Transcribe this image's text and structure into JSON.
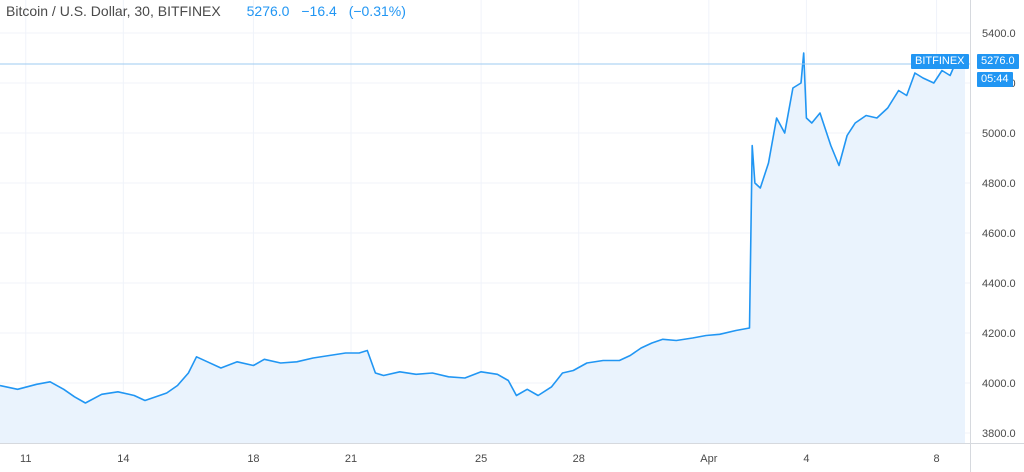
{
  "legend": {
    "symbol": "Bitcoin / U.S. Dollar, 30, BITFINEX",
    "last": "5276.0",
    "change": "−16.4",
    "change_pct": "(−0.31%)"
  },
  "price_tags": {
    "exchange": "BITFINEX",
    "price": "5276.0",
    "countdown": "05:44"
  },
  "colors": {
    "line": "#2196f3",
    "fill": "#eaf3fd",
    "grid": "#f0f3fa",
    "axis_text": "#4a4a4a",
    "tag": "#2196f3"
  },
  "chart_data": {
    "type": "area",
    "title": "Bitcoin / U.S. Dollar, 30, BITFINEX",
    "xlabel": "",
    "ylabel": "",
    "ylim": [
      3760,
      5500
    ],
    "xlim": [
      "2019-03-10 05:00",
      "2019-04-08 21:00"
    ],
    "grid": true,
    "y_ticks": [
      "3800.0",
      "4000.0",
      "4200.0",
      "4400.0",
      "4600.0",
      "4800.0",
      "5000.0",
      "5200.0",
      "5400.0"
    ],
    "x_ticks": [
      {
        "label": "11",
        "date": "2019-03-11"
      },
      {
        "label": "14",
        "date": "2019-03-14"
      },
      {
        "label": "18",
        "date": "2019-03-18"
      },
      {
        "label": "21",
        "date": "2019-03-21"
      },
      {
        "label": "25",
        "date": "2019-03-25"
      },
      {
        "label": "28",
        "date": "2019-03-28"
      },
      {
        "label": "Apr",
        "date": "2019-04-01"
      },
      {
        "label": "4",
        "date": "2019-04-04"
      },
      {
        "label": "8",
        "date": "2019-04-08"
      }
    ],
    "last_value": 5276.0,
    "series": [
      {
        "name": "",
        "x": [
          "2019-03-10 05:00",
          "2019-03-10 18:00",
          "2019-03-11 08:00",
          "2019-03-11 18:00",
          "2019-03-12 04:00",
          "2019-03-12 12:00",
          "2019-03-12 20:00",
          "2019-03-13 08:00",
          "2019-03-13 20:00",
          "2019-03-14 08:00",
          "2019-03-14 16:00",
          "2019-03-15 00:00",
          "2019-03-15 08:00",
          "2019-03-15 16:00",
          "2019-03-16 00:00",
          "2019-03-16 06:00",
          "2019-03-16 14:00",
          "2019-03-17 00:00",
          "2019-03-17 12:00",
          "2019-03-18 00:00",
          "2019-03-18 08:00",
          "2019-03-18 20:00",
          "2019-03-19 08:00",
          "2019-03-19 20:00",
          "2019-03-20 08:00",
          "2019-03-20 20:00",
          "2019-03-21 06:00",
          "2019-03-21 12:00",
          "2019-03-21 18:00",
          "2019-03-22 00:00",
          "2019-03-22 12:00",
          "2019-03-23 00:00",
          "2019-03-23 12:00",
          "2019-03-24 00:00",
          "2019-03-24 12:00",
          "2019-03-25 00:00",
          "2019-03-25 12:00",
          "2019-03-25 20:00",
          "2019-03-26 02:00",
          "2019-03-26 10:00",
          "2019-03-26 18:00",
          "2019-03-27 04:00",
          "2019-03-27 12:00",
          "2019-03-27 20:00",
          "2019-03-28 06:00",
          "2019-03-28 18:00",
          "2019-03-29 06:00",
          "2019-03-29 14:00",
          "2019-03-29 22:00",
          "2019-03-30 06:00",
          "2019-03-30 14:00",
          "2019-03-31 00:00",
          "2019-03-31 12:00",
          "2019-03-31 22:00",
          "2019-04-01 08:00",
          "2019-04-01 20:00",
          "2019-04-02 06:00",
          "2019-04-02 08:00",
          "2019-04-02 10:00",
          "2019-04-02 14:00",
          "2019-04-02 20:00",
          "2019-04-03 02:00",
          "2019-04-03 08:00",
          "2019-04-03 14:00",
          "2019-04-03 20:00",
          "2019-04-03 22:00",
          "2019-04-04 00:00",
          "2019-04-04 04:00",
          "2019-04-04 10:00",
          "2019-04-04 18:00",
          "2019-04-05 00:00",
          "2019-04-05 06:00",
          "2019-04-05 12:00",
          "2019-04-05 20:00",
          "2019-04-06 04:00",
          "2019-04-06 12:00",
          "2019-04-06 20:00",
          "2019-04-07 02:00",
          "2019-04-07 08:00",
          "2019-04-07 14:00",
          "2019-04-07 22:00",
          "2019-04-08 04:00",
          "2019-04-08 10:00",
          "2019-04-08 14:00",
          "2019-04-08 18:00",
          "2019-04-08 21:00"
        ],
        "values": [
          3990,
          3975,
          3995,
          4005,
          3975,
          3945,
          3920,
          3955,
          3965,
          3950,
          3930,
          3945,
          3960,
          3990,
          4040,
          4105,
          4085,
          4060,
          4085,
          4070,
          4095,
          4080,
          4085,
          4100,
          4110,
          4120,
          4120,
          4130,
          4040,
          4030,
          4045,
          4035,
          4040,
          4025,
          4020,
          4045,
          4035,
          4010,
          3950,
          3975,
          3950,
          3985,
          4040,
          4050,
          4080,
          4090,
          4090,
          4110,
          4140,
          4160,
          4175,
          4170,
          4180,
          4190,
          4195,
          4210,
          4220,
          4950,
          4800,
          4780,
          4880,
          5060,
          5000,
          5180,
          5200,
          5320,
          5060,
          5040,
          5080,
          4950,
          4870,
          4990,
          5040,
          5070,
          5060,
          5100,
          5170,
          5150,
          5240,
          5220,
          5200,
          5250,
          5230,
          5280,
          5260,
          5276
        ]
      }
    ]
  }
}
